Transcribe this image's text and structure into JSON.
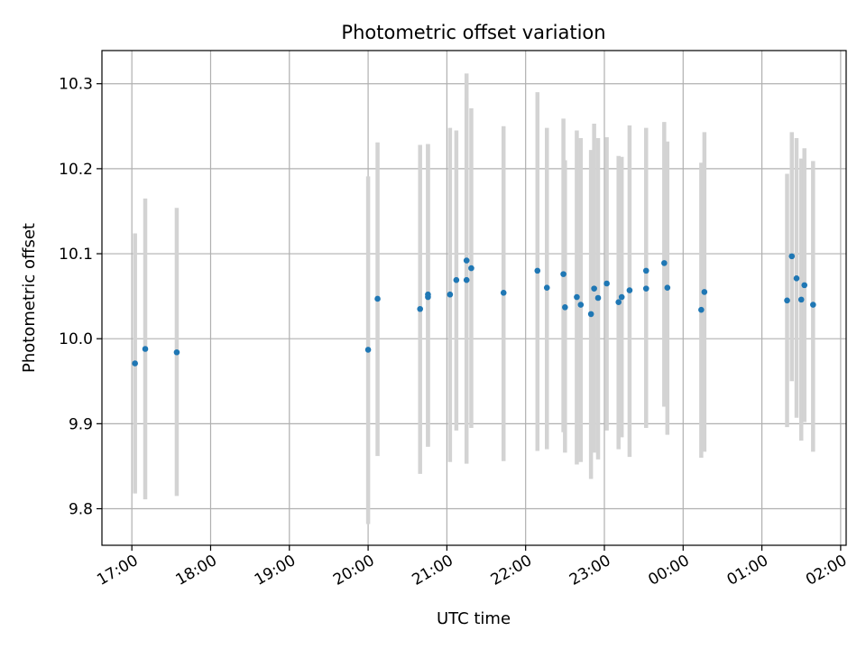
{
  "chart_data": {
    "type": "scatter",
    "title": "Photometric offset variation",
    "xlabel": "UTC time",
    "ylabel": "Photometric offset",
    "x_unit": "hours",
    "xlim": [
      16.62,
      26.07
    ],
    "ylim": [
      9.757,
      10.339
    ],
    "grid": true,
    "x_ticks": [
      {
        "value": 17,
        "label": "17:00"
      },
      {
        "value": 18,
        "label": "18:00"
      },
      {
        "value": 19,
        "label": "19:00"
      },
      {
        "value": 20,
        "label": "20:00"
      },
      {
        "value": 21,
        "label": "21:00"
      },
      {
        "value": 22,
        "label": "22:00"
      },
      {
        "value": 23,
        "label": "23:00"
      },
      {
        "value": 24,
        "label": "00:00"
      },
      {
        "value": 25,
        "label": "01:00"
      },
      {
        "value": 26,
        "label": "02:00"
      }
    ],
    "y_ticks": [
      {
        "value": 9.8,
        "label": "9.8"
      },
      {
        "value": 9.9,
        "label": "9.9"
      },
      {
        "value": 10.0,
        "label": "10.0"
      },
      {
        "value": 10.1,
        "label": "10.1"
      },
      {
        "value": 10.2,
        "label": "10.2"
      },
      {
        "value": 10.3,
        "label": "10.3"
      }
    ],
    "colors": {
      "marker": "#1f77b4",
      "errorbar": "#d3d3d3",
      "grid": "#b0b0b0"
    },
    "points": [
      {
        "x": 17.04,
        "y": 9.971,
        "lo": 9.818,
        "hi": 10.124
      },
      {
        "x": 17.17,
        "y": 9.988,
        "lo": 9.811,
        "hi": 10.165
      },
      {
        "x": 17.57,
        "y": 9.984,
        "lo": 9.815,
        "hi": 10.154
      },
      {
        "x": 20.0,
        "y": 9.987,
        "lo": 9.782,
        "hi": 10.191
      },
      {
        "x": 20.12,
        "y": 10.047,
        "lo": 9.862,
        "hi": 10.231
      },
      {
        "x": 20.66,
        "y": 10.035,
        "lo": 9.841,
        "hi": 10.228
      },
      {
        "x": 20.76,
        "y": 10.049,
        "lo": 9.873,
        "hi": 10.229
      },
      {
        "x": 20.76,
        "y": 10.052,
        "lo": 9.873,
        "hi": 10.229
      },
      {
        "x": 21.04,
        "y": 10.052,
        "lo": 9.855,
        "hi": 10.248
      },
      {
        "x": 21.12,
        "y": 10.069,
        "lo": 9.892,
        "hi": 10.245
      },
      {
        "x": 21.25,
        "y": 10.069,
        "lo": 9.853,
        "hi": 10.312
      },
      {
        "x": 21.25,
        "y": 10.092,
        "lo": 9.9,
        "hi": 10.283
      },
      {
        "x": 21.31,
        "y": 10.083,
        "lo": 9.895,
        "hi": 10.271
      },
      {
        "x": 21.72,
        "y": 10.054,
        "lo": 9.856,
        "hi": 10.25
      },
      {
        "x": 22.15,
        "y": 10.08,
        "lo": 9.868,
        "hi": 10.29
      },
      {
        "x": 22.27,
        "y": 10.06,
        "lo": 9.87,
        "hi": 10.248
      },
      {
        "x": 22.48,
        "y": 10.076,
        "lo": 9.89,
        "hi": 10.259
      },
      {
        "x": 22.5,
        "y": 10.037,
        "lo": 9.866,
        "hi": 10.21
      },
      {
        "x": 22.65,
        "y": 10.049,
        "lo": 9.852,
        "hi": 10.245
      },
      {
        "x": 22.7,
        "y": 10.04,
        "lo": 9.855,
        "hi": 10.236
      },
      {
        "x": 22.83,
        "y": 10.029,
        "lo": 9.835,
        "hi": 10.222
      },
      {
        "x": 22.87,
        "y": 10.059,
        "lo": 9.866,
        "hi": 10.253
      },
      {
        "x": 22.92,
        "y": 10.048,
        "lo": 9.858,
        "hi": 10.236
      },
      {
        "x": 23.03,
        "y": 10.065,
        "lo": 9.892,
        "hi": 10.237
      },
      {
        "x": 23.18,
        "y": 10.043,
        "lo": 9.87,
        "hi": 10.215
      },
      {
        "x": 23.22,
        "y": 10.049,
        "lo": 9.884,
        "hi": 10.214
      },
      {
        "x": 23.32,
        "y": 10.057,
        "lo": 9.861,
        "hi": 10.251
      },
      {
        "x": 23.53,
        "y": 10.08,
        "lo": 9.895,
        "hi": 10.248
      },
      {
        "x": 23.53,
        "y": 10.059,
        "lo": 9.91,
        "hi": 10.226
      },
      {
        "x": 23.76,
        "y": 10.089,
        "lo": 9.92,
        "hi": 10.255
      },
      {
        "x": 23.8,
        "y": 10.06,
        "lo": 9.887,
        "hi": 10.232
      },
      {
        "x": 24.23,
        "y": 10.034,
        "lo": 9.86,
        "hi": 10.207
      },
      {
        "x": 24.27,
        "y": 10.055,
        "lo": 9.867,
        "hi": 10.243
      },
      {
        "x": 25.32,
        "y": 10.045,
        "lo": 9.896,
        "hi": 10.194
      },
      {
        "x": 25.38,
        "y": 10.097,
        "lo": 9.95,
        "hi": 10.243
      },
      {
        "x": 25.44,
        "y": 10.071,
        "lo": 9.907,
        "hi": 10.236
      },
      {
        "x": 25.5,
        "y": 10.046,
        "lo": 9.88,
        "hi": 10.212
      },
      {
        "x": 25.54,
        "y": 10.063,
        "lo": 9.902,
        "hi": 10.224
      },
      {
        "x": 25.65,
        "y": 10.04,
        "lo": 9.867,
        "hi": 10.209
      }
    ]
  }
}
